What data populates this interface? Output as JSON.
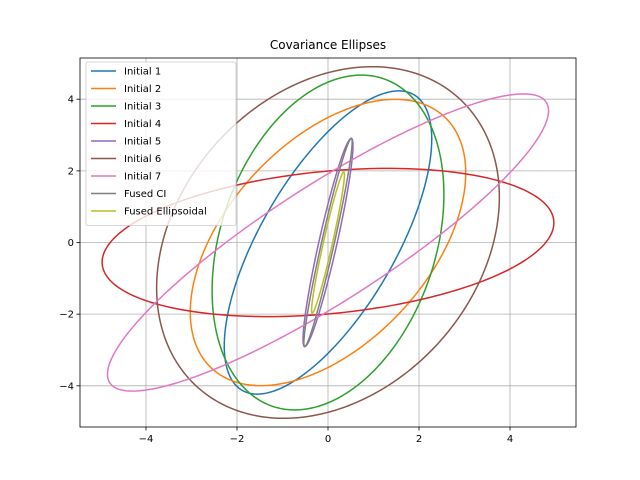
{
  "chart_data": {
    "type": "line",
    "title": "Covariance Ellipses",
    "xlabel": "",
    "ylabel": "",
    "xlim": [
      -5.45,
      5.45
    ],
    "ylim": [
      -5.15,
      5.15
    ],
    "xticks": [
      -4,
      -2,
      0,
      2,
      4
    ],
    "yticks": [
      -4,
      -2,
      0,
      2,
      4
    ],
    "grid": true,
    "legend_position": "upper-left",
    "series": [
      {
        "name": "Initial 1",
        "color": "#1f77b4",
        "center": [
          0,
          0
        ],
        "semi_axes": [
          4.55,
          1.55
        ],
        "angle_deg": 67
      },
      {
        "name": "Initial 2",
        "color": "#ff7f0e",
        "center": [
          0,
          0
        ],
        "semi_axes": [
          4.4,
          2.4
        ],
        "angle_deg": 60
      },
      {
        "name": "Initial 3",
        "color": "#2ca02c",
        "center": [
          0,
          0
        ],
        "semi_axes": [
          4.75,
          2.4
        ],
        "angle_deg": 78
      },
      {
        "name": "Initial 4",
        "color": "#d62728",
        "center": [
          0,
          0
        ],
        "semi_axes": [
          5.0,
          1.98
        ],
        "angle_deg": 7.5
      },
      {
        "name": "Initial 5",
        "color": "#9467bd",
        "center": [
          0,
          0
        ],
        "semi_axes": [
          2.95,
          0.2
        ],
        "angle_deg": 80
      },
      {
        "name": "Initial 6",
        "color": "#8c564b",
        "center": [
          0,
          0
        ],
        "semi_axes": [
          5.1,
          3.5
        ],
        "angle_deg": 68
      },
      {
        "name": "Initial 7",
        "color": "#e377c2",
        "center": [
          0,
          0
        ],
        "semi_axes": [
          6.2,
          1.5
        ],
        "angle_deg": 40
      },
      {
        "name": "Fused CI",
        "color": "#7f7f7f",
        "center": [
          0,
          0
        ],
        "semi_axes": [
          2.95,
          0.14
        ],
        "angle_deg": 80
      },
      {
        "name": "Fused Ellipsoidal",
        "color": "#bcbd22",
        "center": [
          0,
          0
        ],
        "semi_axes": [
          2.0,
          0.1
        ],
        "angle_deg": 80
      }
    ]
  }
}
